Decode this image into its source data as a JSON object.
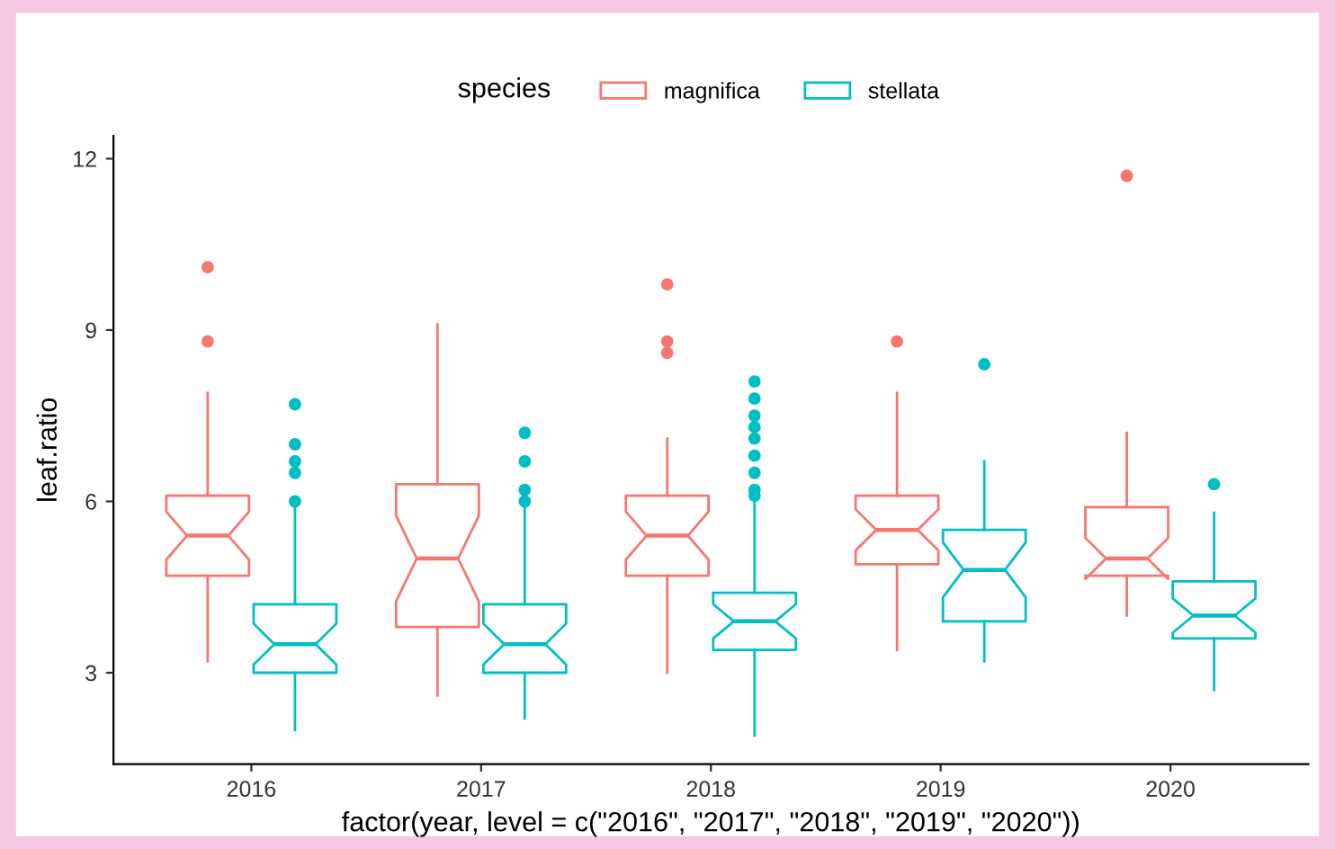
{
  "chart_data": {
    "type": "box",
    "xlabel": "factor(year, level = c(\"2016\", \"2017\", \"2018\", \"2019\", \"2020\"))",
    "ylabel": "leaf.ratio",
    "legend_title": "species",
    "legend": "top",
    "categories": [
      "2016",
      "2017",
      "2018",
      "2019",
      "2020"
    ],
    "ylim": [
      1.4,
      12.4
    ],
    "yticks": [
      3,
      6,
      9,
      12
    ],
    "grid": false,
    "series": [
      {
        "name": "magnifica",
        "color": "#f8766d",
        "boxes": [
          {
            "low": 3.2,
            "q1": 4.7,
            "median": 5.4,
            "q3": 6.1,
            "high": 7.9,
            "outliers": [
              10.1,
              8.8
            ]
          },
          {
            "low": 2.6,
            "q1": 3.8,
            "median": 5.0,
            "q3": 6.3,
            "high": 9.1
          },
          {
            "low": 3.0,
            "q1": 4.7,
            "median": 5.4,
            "q3": 6.1,
            "high": 7.1,
            "outliers": [
              9.8,
              8.8,
              8.6
            ]
          },
          {
            "low": 3.4,
            "q1": 4.9,
            "median": 5.5,
            "q3": 6.1,
            "high": 7.9,
            "outliers": [
              8.8
            ]
          },
          {
            "low": 4.0,
            "q1": 4.7,
            "median": 5.0,
            "q3": 5.9,
            "high": 7.2,
            "outliers": [
              11.7
            ]
          }
        ]
      },
      {
        "name": "stellata",
        "color": "#00bfc4",
        "boxes": [
          {
            "low": 2.0,
            "q1": 3.0,
            "median": 3.5,
            "q3": 4.2,
            "high": 5.9,
            "outliers": [
              7.7,
              7.0,
              6.7,
              6.5,
              6.0
            ]
          },
          {
            "low": 2.2,
            "q1": 3.0,
            "median": 3.5,
            "q3": 4.2,
            "high": 5.9,
            "outliers": [
              7.2,
              6.7,
              6.2,
              6.0
            ]
          },
          {
            "low": 1.9,
            "q1": 3.4,
            "median": 3.9,
            "q3": 4.4,
            "high": 6.0,
            "outliers": [
              8.1,
              7.8,
              7.5,
              7.3,
              7.1,
              6.8,
              6.5,
              6.2,
              6.1
            ]
          },
          {
            "low": 3.2,
            "q1": 3.9,
            "median": 4.8,
            "q3": 5.5,
            "high": 6.7,
            "outliers": [
              8.4
            ]
          },
          {
            "low": 2.7,
            "q1": 3.6,
            "median": 4.0,
            "q3": 4.6,
            "high": 5.8,
            "outliers": [
              6.3
            ]
          }
        ]
      }
    ]
  }
}
